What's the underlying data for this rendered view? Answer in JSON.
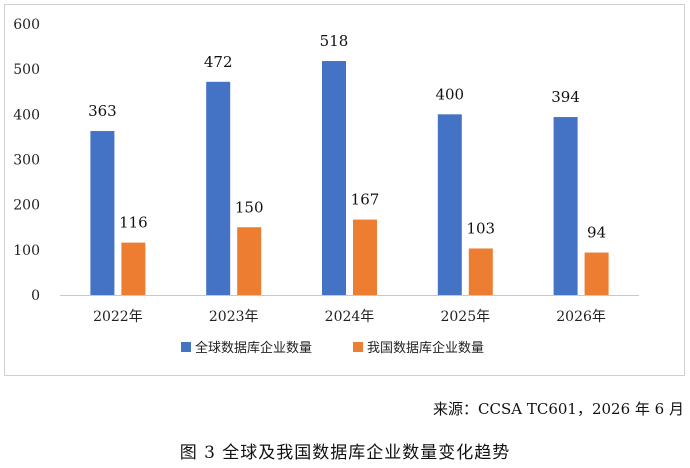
{
  "chart_data": {
    "type": "bar",
    "categories": [
      "2022年",
      "2023年",
      "2024年",
      "2025年",
      "2026年"
    ],
    "series": [
      {
        "name": "全球数据库企业数量",
        "values": [
          363,
          472,
          518,
          400,
          394
        ],
        "color": "#4472C4"
      },
      {
        "name": "我国数据库企业数量",
        "values": [
          116,
          150,
          167,
          103,
          94
        ],
        "color": "#ED7D31"
      }
    ],
    "yticks": [
      0,
      100,
      200,
      300,
      400,
      500,
      600
    ],
    "ylim": [
      0,
      600
    ],
    "grid": false,
    "legend_position": "bottom"
  },
  "source": "来源：CCSA TC601，2026 年 6 月",
  "caption": "图 3 全球及我国数据库企业数量变化趋势"
}
